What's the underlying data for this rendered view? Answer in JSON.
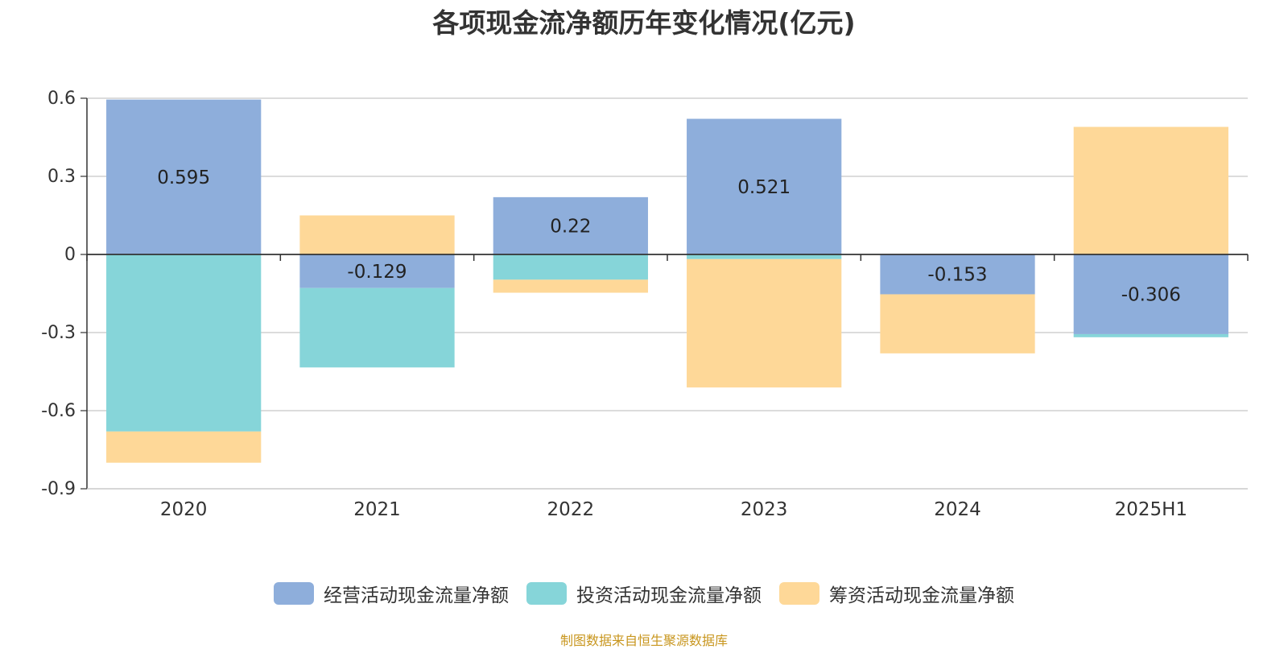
{
  "chart_data": {
    "type": "bar",
    "stacked": true,
    "title": "各项现金流净额历年变化情况(亿元)",
    "categories": [
      "2020",
      "2021",
      "2022",
      "2023",
      "2024",
      "2025H1"
    ],
    "ylim": [
      -0.9,
      0.6
    ],
    "yticks": [
      "0.6",
      "0.3",
      "0",
      "-0.3",
      "-0.6",
      "-0.9"
    ],
    "ytick_values": [
      0.6,
      0.3,
      0,
      -0.3,
      -0.6,
      -0.9
    ],
    "series": [
      {
        "name": "经营活动现金流量净额",
        "color": "#8eaedb",
        "values": [
          0.595,
          -0.129,
          0.22,
          0.521,
          -0.153,
          -0.306
        ],
        "labels": [
          "0.595",
          "-0.129",
          "0.22",
          "0.521",
          "-0.153",
          "-0.306"
        ]
      },
      {
        "name": "投资活动现金流量净额",
        "color": "#86d5d9",
        "values": [
          -0.68,
          -0.305,
          -0.097,
          -0.018,
          0.0,
          -0.012
        ]
      },
      {
        "name": "筹资活动现金流量净额",
        "color": "#fed898",
        "values": [
          -0.12,
          0.15,
          -0.05,
          -0.493,
          -0.227,
          0.49
        ]
      }
    ],
    "legend_position": "bottom-center",
    "grid": true
  },
  "source": "制图数据来自恒生聚源数据库"
}
